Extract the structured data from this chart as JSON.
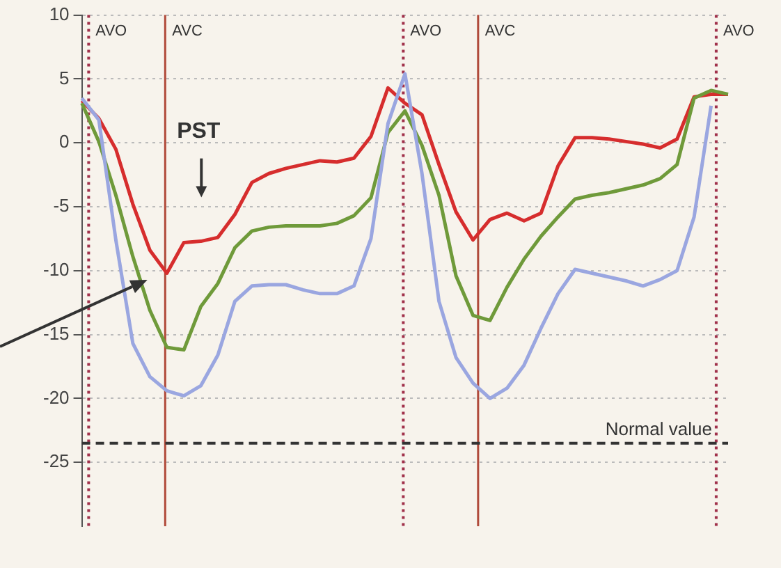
{
  "chart_data": {
    "type": "line",
    "categories": [
      null,
      null,
      null,
      null,
      null,
      null,
      null,
      null,
      null,
      null,
      null,
      null,
      null,
      null,
      null,
      null,
      null,
      null,
      null,
      null,
      null,
      null,
      null,
      null,
      null,
      null,
      null,
      null,
      null,
      null,
      null,
      null,
      null,
      null,
      null,
      null,
      null,
      null,
      null
    ],
    "ylim": [
      -30,
      10
    ],
    "yticks": [
      10,
      5,
      0,
      -5,
      -10,
      -15,
      -20,
      -25
    ],
    "grid": "y",
    "tick_labels": "y",
    "marker": "none",
    "line_style": "solid",
    "series": [
      {
        "color": "#9aa6e0",
        "values": [
          3.5,
          1.8,
          -7.6,
          -15.7,
          -18.3,
          -19.4,
          -19.8,
          -19.0,
          -16.6,
          -12.4,
          -11.2,
          -11.1,
          -11.1,
          -11.5,
          -11.8,
          -11.8,
          -11.2,
          -7.5,
          1.5,
          5.4,
          -2.4,
          -12.4,
          -16.8,
          -18.8,
          -20.0,
          -19.2,
          -17.4,
          -14.5,
          -11.8,
          -9.9,
          -10.2,
          -10.5,
          -10.8,
          -11.2,
          -10.7,
          -10.0,
          -5.8,
          2.9,
          null
        ]
      },
      {
        "color": "#6f9a3a",
        "values": [
          3.1,
          0.1,
          -4.1,
          -8.9,
          -13.1,
          -16.0,
          -16.2,
          -12.8,
          -11.0,
          -8.2,
          -6.9,
          -6.6,
          -6.5,
          -6.5,
          -6.5,
          -6.3,
          -5.7,
          -4.3,
          0.8,
          2.5,
          -0.2,
          -4.1,
          -10.4,
          -13.5,
          -13.9,
          -11.3,
          -9.1,
          -7.3,
          -5.8,
          -4.4,
          -4.1,
          -3.9,
          -3.6,
          -3.3,
          -2.8,
          -1.7,
          3.5,
          4.1,
          3.8
        ]
      },
      {
        "color": "#d62d2d",
        "values": [
          3.3,
          1.9,
          -0.5,
          -4.8,
          -8.4,
          -10.2,
          -7.8,
          -7.7,
          -7.4,
          -5.6,
          -3.1,
          -2.4,
          -2.0,
          -1.7,
          -1.4,
          -1.5,
          -1.2,
          0.5,
          4.3,
          3.1,
          2.2,
          -1.7,
          -5.4,
          -7.6,
          -6.0,
          -5.5,
          -6.1,
          -5.5,
          -1.8,
          0.4,
          0.4,
          0.3,
          0.1,
          -0.1,
          -0.4,
          0.3,
          3.6,
          3.8,
          3.8
        ]
      }
    ],
    "ref_lines": [
      {
        "axis": "y",
        "value": -23.5,
        "label": "Normal value",
        "color": "#333333",
        "line_style": "dashed"
      }
    ],
    "annotations": [
      "AVO",
      "AVC",
      "AVO",
      "AVC",
      "AVO",
      "PST"
    ]
  }
}
